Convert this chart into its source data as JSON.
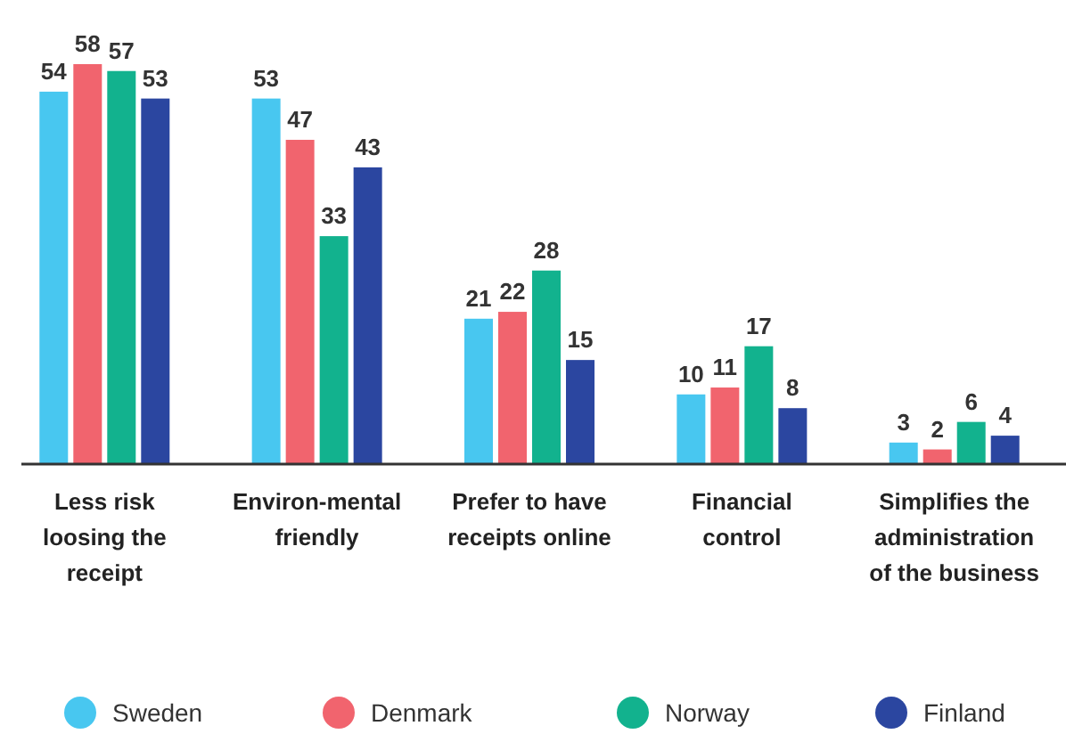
{
  "chart_data": {
    "type": "bar",
    "categories": [
      "Less risk loosing the receipt",
      "Environ-mental friendly",
      "Prefer to have receipts online",
      "Financial control",
      "Simplifies the administration of the business"
    ],
    "series": [
      {
        "name": "Sweden",
        "color": "#48c7f0",
        "values": [
          54,
          53,
          21,
          10,
          3
        ]
      },
      {
        "name": "Denmark",
        "color": "#f1646e",
        "values": [
          58,
          47,
          22,
          11,
          2
        ]
      },
      {
        "name": "Norway",
        "color": "#12b28e",
        "values": [
          57,
          33,
          28,
          17,
          6
        ]
      },
      {
        "name": "Finland",
        "color": "#2b46a0",
        "values": [
          53,
          43,
          15,
          8,
          4
        ]
      }
    ],
    "data_labels": true,
    "legend": "bottom",
    "grid": false
  }
}
